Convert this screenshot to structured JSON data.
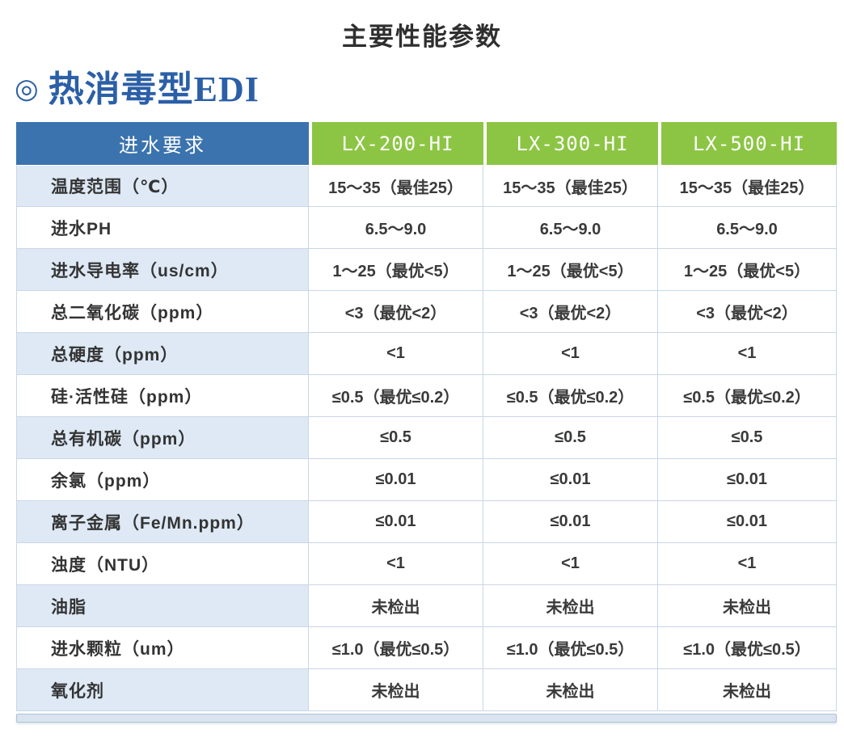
{
  "page": {
    "title": "主要性能参数",
    "section_marker": "◎",
    "section_title": "热消毒型EDI"
  },
  "colors": {
    "header_blue": "#3b73ae",
    "header_green": "#8cc544",
    "row_alt_blue": "#dee9f5",
    "section_blue": "#2b5fa7",
    "border": "#c9d7e6"
  },
  "table": {
    "header": [
      "进水要求",
      "LX-200-HI",
      "LX-300-HI",
      "LX-500-HI"
    ],
    "rows": [
      {
        "label": "温度范围（℃）",
        "values": [
          "15～35（最佳25）",
          "15～35（最佳25）",
          "15～35（最佳25）"
        ]
      },
      {
        "label": "进水PH",
        "values": [
          "6.5～9.0",
          "6.5～9.0",
          "6.5～9.0"
        ]
      },
      {
        "label": "进水导电率（us/cm）",
        "values": [
          "1～25（最优<5）",
          "1～25（最优<5）",
          "1～25（最优<5）"
        ]
      },
      {
        "label": "总二氧化碳（ppm）",
        "values": [
          "<3（最优<2）",
          "<3（最优<2）",
          "<3（最优<2）"
        ]
      },
      {
        "label": "总硬度（ppm）",
        "values": [
          "<1",
          "<1",
          "<1"
        ]
      },
      {
        "label": "硅·活性硅（ppm）",
        "values": [
          "≤0.5（最优≤0.2）",
          "≤0.5（最优≤0.2）",
          "≤0.5（最优≤0.2）"
        ]
      },
      {
        "label": "总有机碳（ppm）",
        "values": [
          "≤0.5",
          "≤0.5",
          "≤0.5"
        ]
      },
      {
        "label": "余氯（ppm）",
        "values": [
          "≤0.01",
          "≤0.01",
          "≤0.01"
        ]
      },
      {
        "label": "离子金属（Fe/Mn.ppm）",
        "values": [
          "≤0.01",
          "≤0.01",
          "≤0.01"
        ]
      },
      {
        "label": "浊度（NTU）",
        "values": [
          "<1",
          "<1",
          "<1"
        ]
      },
      {
        "label": "油脂",
        "values": [
          "未检出",
          "未检出",
          "未检出"
        ]
      },
      {
        "label": "进水颗粒（um）",
        "values": [
          "≤1.0（最优≤0.5）",
          "≤1.0（最优≤0.5）",
          "≤1.0（最优≤0.5）"
        ]
      },
      {
        "label": "氧化剂",
        "values": [
          "未检出",
          "未检出",
          "未检出"
        ]
      }
    ]
  }
}
